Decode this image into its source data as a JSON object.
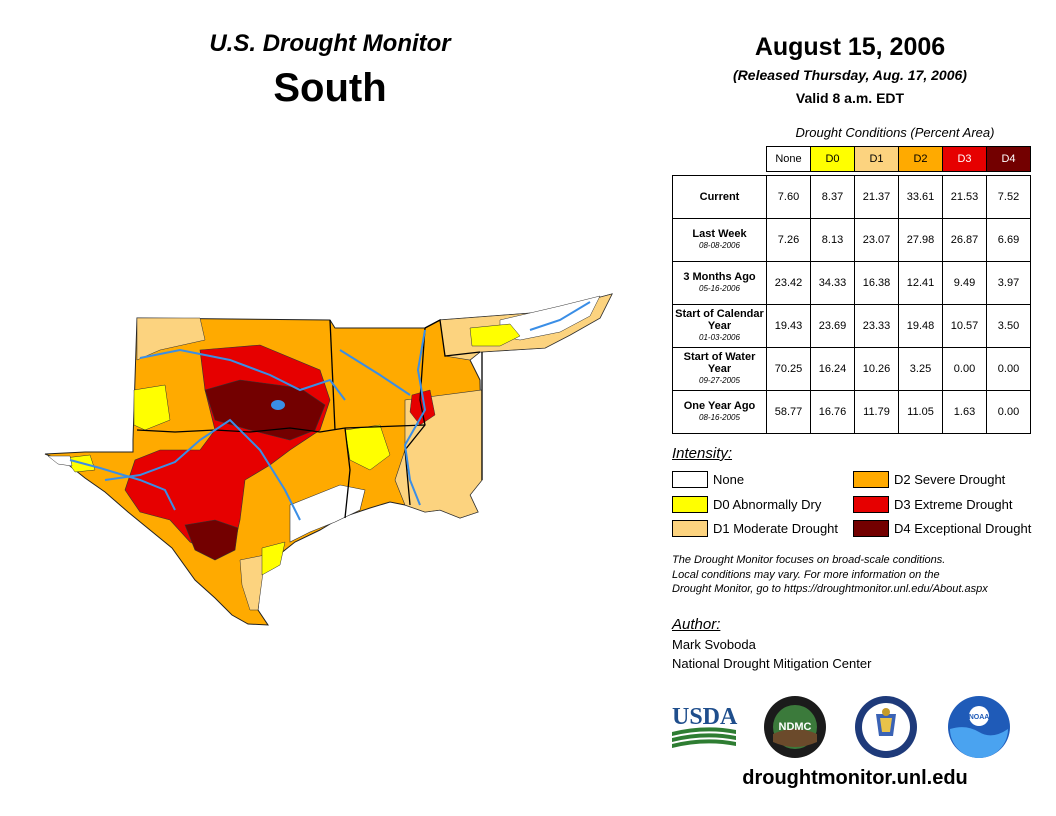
{
  "header": {
    "title": "U.S. Drought Monitor",
    "region": "South",
    "date": "August 15, 2006",
    "released": "(Released Thursday, Aug. 17, 2006)",
    "valid": "Valid 8 a.m. EDT"
  },
  "table": {
    "caption": "Drought Conditions (Percent Area)",
    "columns": [
      "None",
      "D0",
      "D1",
      "D2",
      "D3",
      "D4"
    ],
    "column_colors": [
      "#ffffff",
      "#ffff00",
      "#fcd37f",
      "#ffaa00",
      "#e60000",
      "#730000"
    ],
    "rows": [
      {
        "label": "Current",
        "sublabel": "",
        "values": [
          "7.60",
          "8.37",
          "21.37",
          "33.61",
          "21.53",
          "7.52"
        ]
      },
      {
        "label": "Last Week",
        "sublabel": "08-08-2006",
        "values": [
          "7.26",
          "8.13",
          "23.07",
          "27.98",
          "26.87",
          "6.69"
        ]
      },
      {
        "label": "3 Months Ago",
        "sublabel": "05-16-2006",
        "values": [
          "23.42",
          "34.33",
          "16.38",
          "12.41",
          "9.49",
          "3.97"
        ]
      },
      {
        "label": "Start of Calendar Year",
        "sublabel": "01-03-2006",
        "values": [
          "19.43",
          "23.69",
          "23.33",
          "19.48",
          "10.57",
          "3.50"
        ]
      },
      {
        "label": "Start of Water Year",
        "sublabel": "09-27-2005",
        "values": [
          "70.25",
          "16.24",
          "10.26",
          "3.25",
          "0.00",
          "0.00"
        ]
      },
      {
        "label": "One Year Ago",
        "sublabel": "08-16-2005",
        "values": [
          "58.77",
          "16.76",
          "11.79",
          "11.05",
          "1.63",
          "0.00"
        ]
      }
    ]
  },
  "legend": {
    "title": "Intensity:",
    "items": [
      {
        "label": "None",
        "color": "#ffffff"
      },
      {
        "label": "D0 Abnormally Dry",
        "color": "#ffff00"
      },
      {
        "label": "D1 Moderate Drought",
        "color": "#fcd37f"
      },
      {
        "label": "D2 Severe Drought",
        "color": "#ffaa00"
      },
      {
        "label": "D3 Extreme Drought",
        "color": "#e60000"
      },
      {
        "label": "D4 Exceptional Drought",
        "color": "#730000"
      }
    ]
  },
  "note": {
    "line1": "The Drought Monitor focuses on broad-scale conditions.",
    "line2": "Local conditions may vary. For more information on the",
    "line3": "Drought Monitor, go to https://droughtmonitor.unl.edu/About.aspx"
  },
  "author": {
    "title": "Author:",
    "name": "Mark Svoboda",
    "org": "National Drought Mitigation Center"
  },
  "logos": {
    "usda": "USDA",
    "ndmc": "NDMC",
    "noaa": "NOAA"
  },
  "footer": {
    "url": "droughtmonitor.unl.edu"
  }
}
